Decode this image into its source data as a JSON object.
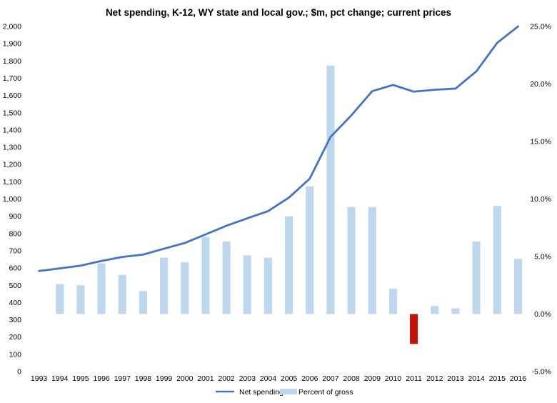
{
  "chart_data": {
    "type": "bar+line",
    "title": "Net spending, K-12, WY state and local gov.; $m, pct change; current prices",
    "categories": [
      "1993",
      "1994",
      "1995",
      "1996",
      "1997",
      "1998",
      "1999",
      "2000",
      "2001",
      "2002",
      "2003",
      "2004",
      "2005",
      "2006",
      "2007",
      "2008",
      "2009",
      "2010",
      "2011",
      "2012",
      "2013",
      "2014",
      "2015",
      "2016"
    ],
    "series": [
      {
        "name": "Net spending",
        "kind": "line",
        "axis": "left",
        "color": "#4472C4",
        "values": [
          583,
          598,
          614,
          641,
          664,
          678,
          712,
          745,
          795,
          845,
          888,
          930,
          1008,
          1118,
          1360,
          1485,
          1625,
          1661,
          1622,
          1633,
          1640,
          1740,
          1905,
          2000
        ]
      },
      {
        "name": "Percent of gross",
        "kind": "bar",
        "axis": "right",
        "color": "#BDD7EE",
        "negative_color": "#C0140C",
        "values": [
          null,
          2.6,
          2.5,
          4.4,
          3.4,
          2.0,
          4.9,
          4.5,
          6.7,
          6.3,
          5.1,
          4.9,
          8.5,
          11.1,
          21.6,
          9.3,
          9.3,
          2.2,
          -2.6,
          0.7,
          0.5,
          6.3,
          9.4,
          4.8
        ]
      }
    ],
    "left_axis": {
      "min": 0,
      "max": 2000,
      "step": 100,
      "tick_labels": [
        "0",
        "100",
        "200",
        "300",
        "400",
        "500",
        "600",
        "700",
        "800",
        "900",
        "1,000",
        "1,100",
        "1,200",
        "1,300",
        "1,400",
        "1,500",
        "1,600",
        "1,700",
        "1,800",
        "1,900",
        "2,000"
      ]
    },
    "right_axis": {
      "min": -5,
      "max": 25,
      "step": 5,
      "tick_labels": [
        "-5.0%",
        "0.0%",
        "5.0%",
        "10.0%",
        "15.0%",
        "20.0%",
        "25.0%"
      ]
    },
    "legend": {
      "position": "bottom",
      "items": [
        "Net spending",
        "Percent of gross"
      ]
    },
    "grid": false
  }
}
